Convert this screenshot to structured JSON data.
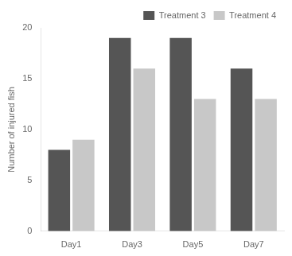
{
  "chart_data": {
    "type": "bar",
    "categories": [
      "Day1",
      "Day3",
      "Day5",
      "Day7"
    ],
    "series": [
      {
        "name": "Treatment 3",
        "color": "#555555",
        "values": [
          8,
          19,
          19,
          16
        ]
      },
      {
        "name": "Treatment 4",
        "color": "#c8c8c8",
        "values": [
          9,
          16,
          13,
          13
        ]
      }
    ],
    "ylabel": "Number of injured fish",
    "ylim": [
      0,
      20
    ],
    "yticks": [
      0,
      5,
      10,
      15,
      20
    ],
    "grid": false,
    "legend": "upper right"
  }
}
